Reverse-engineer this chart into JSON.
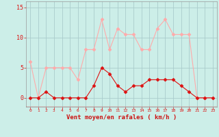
{
  "x": [
    0,
    1,
    2,
    3,
    4,
    5,
    6,
    7,
    8,
    9,
    10,
    11,
    12,
    13,
    14,
    15,
    16,
    17,
    18,
    19,
    20,
    21,
    22,
    23
  ],
  "rafales": [
    6,
    0,
    5,
    5,
    5,
    5,
    3,
    8,
    8,
    13,
    8,
    11.5,
    10.5,
    10.5,
    8,
    8,
    11.5,
    13,
    10.5,
    10.5,
    10.5,
    0,
    0,
    0
  ],
  "vent_moyen": [
    0,
    0,
    1,
    0,
    0,
    0,
    0,
    0,
    2,
    5,
    4,
    2,
    1,
    2,
    2,
    3,
    3,
    3,
    3,
    2,
    1,
    0,
    0,
    0
  ],
  "rafales_color": "#ffaaaa",
  "vent_moyen_color": "#dd1111",
  "bg_color": "#cceee8",
  "grid_color": "#aacccc",
  "xlabel": "Vent moyen/en rafales ( km/h )",
  "xlabel_color": "#cc1111",
  "yticks": [
    0,
    5,
    10,
    15
  ],
  "xlim": [
    -0.5,
    23.5
  ],
  "ylim": [
    -1.5,
    16
  ],
  "marker": "D",
  "marker_size": 2.5,
  "line_width": 0.8
}
